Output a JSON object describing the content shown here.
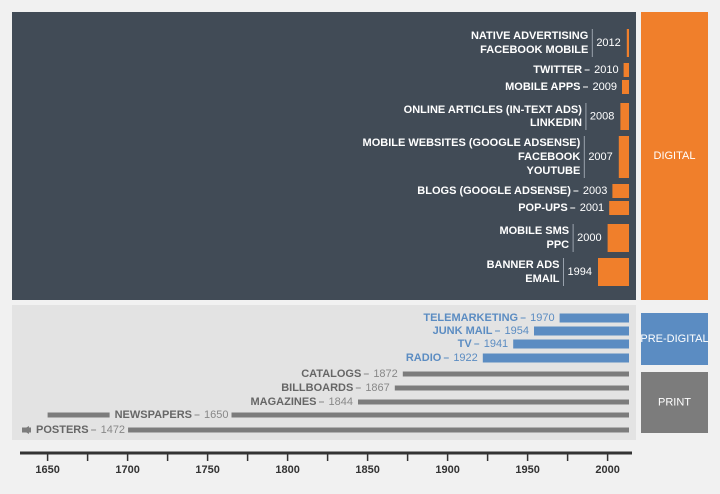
{
  "chart_data": {
    "type": "timeline",
    "xlim": [
      1634,
      2014
    ],
    "xticks": [
      1650,
      1700,
      1750,
      1800,
      1850,
      1900,
      1950,
      2000
    ],
    "xminor_ticks": [
      1675,
      1725,
      1775,
      1825,
      1875,
      1925,
      1975
    ],
    "groups": [
      {
        "name": "DIGITAL",
        "color": "#f07f2b",
        "items": [
          {
            "lines": [
              "NATIVE ADVERTISING",
              "FACEBOOK MOBILE"
            ],
            "year": 2012
          },
          {
            "lines": [
              "TWITTER"
            ],
            "year": 2010
          },
          {
            "lines": [
              "MOBILE APPS"
            ],
            "year": 2009
          },
          {
            "lines": [
              "ONLINE ARTICLES (IN-TEXT ADS)",
              "LINKEDIN"
            ],
            "year": 2008
          },
          {
            "lines": [
              "MOBILE WEBSITES (GOOGLE ADSENSE)",
              "FACEBOOK",
              "YOUTUBE"
            ],
            "year": 2007
          },
          {
            "lines": [
              "BLOGS (GOOGLE ADSENSE)"
            ],
            "year": 2003
          },
          {
            "lines": [
              "POP-UPS"
            ],
            "year": 2001
          },
          {
            "lines": [
              "MOBILE SMS",
              "PPC"
            ],
            "year": 2000
          },
          {
            "lines": [
              "BANNER ADS",
              "EMAIL"
            ],
            "year": 1994
          }
        ]
      },
      {
        "name": "PRE-DIGITAL",
        "color": "#5b8cc2",
        "items": [
          {
            "lines": [
              "TELEMARKETING"
            ],
            "year": 1970
          },
          {
            "lines": [
              "JUNK MAIL"
            ],
            "year": 1954
          },
          {
            "lines": [
              "TV"
            ],
            "year": 1941
          },
          {
            "lines": [
              "RADIO"
            ],
            "year": 1922
          }
        ]
      },
      {
        "name": "PRINT",
        "color": "#7c7c7c",
        "items": [
          {
            "lines": [
              "CATALOGS"
            ],
            "year": 1872
          },
          {
            "lines": [
              "BILLBOARDS"
            ],
            "year": 1867
          },
          {
            "lines": [
              "MAGAZINES"
            ],
            "year": 1844
          },
          {
            "lines": [
              "NEWSPAPERS"
            ],
            "year": 1650
          },
          {
            "lines": [
              "POSTERS"
            ],
            "year": 1472
          }
        ]
      }
    ]
  }
}
